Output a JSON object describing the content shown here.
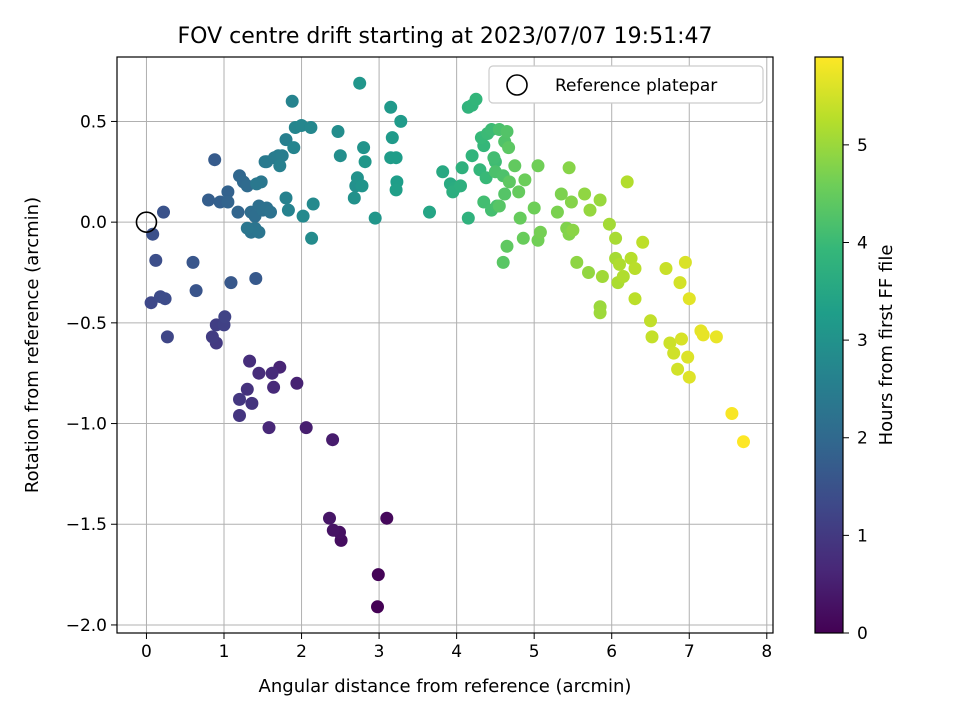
{
  "chart_data": {
    "type": "scatter",
    "title": "FOV centre drift starting at 2023/07/07 19:51:47",
    "xlabel": "Angular distance from reference (arcmin)",
    "ylabel": "Rotation from reference (arcmin)",
    "xlim": [
      -0.38,
      8.08
    ],
    "ylim": [
      -2.04,
      0.82
    ],
    "xticks": [
      "0",
      "1",
      "2",
      "3",
      "4",
      "5",
      "6",
      "7",
      "8"
    ],
    "yticks": [
      "0.5",
      "0.0",
      "−0.5",
      "−1.0",
      "−1.5",
      "−2.0"
    ],
    "grid": true,
    "legend": {
      "location": "top-right",
      "entries": [
        "Reference platepar"
      ]
    },
    "reference_point": {
      "x": 0,
      "y": 0
    },
    "colorbar": {
      "label": "Hours from first FF file",
      "colormap": "viridis",
      "range": [
        0,
        5.9
      ],
      "ticks": [
        "0",
        "1",
        "2",
        "3",
        "4",
        "5"
      ]
    },
    "colormap_stops": [
      "#440154",
      "#482878",
      "#3e4989",
      "#31688e",
      "#26828e",
      "#1f9e89",
      "#35b779",
      "#6ece58",
      "#b5de2b",
      "#fde725"
    ],
    "points": [
      [
        2.98,
        -1.91,
        0.0
      ],
      [
        2.99,
        -1.75,
        0.05
      ],
      [
        3.1,
        -1.47,
        0.12
      ],
      [
        2.51,
        -1.58,
        0.2
      ],
      [
        2.49,
        -1.54,
        0.25
      ],
      [
        2.41,
        -1.53,
        0.3
      ],
      [
        2.36,
        -1.47,
        0.33
      ],
      [
        2.4,
        -1.08,
        0.45
      ],
      [
        2.06,
        -1.02,
        0.5
      ],
      [
        1.94,
        -0.8,
        0.55
      ],
      [
        1.72,
        -0.72,
        0.6
      ],
      [
        1.58,
        -1.02,
        0.65
      ],
      [
        1.64,
        -0.82,
        0.7
      ],
      [
        1.62,
        -0.75,
        0.72
      ],
      [
        1.45,
        -0.75,
        0.75
      ],
      [
        1.33,
        -0.69,
        0.78
      ],
      [
        1.3,
        -0.83,
        0.85
      ],
      [
        1.36,
        -0.9,
        0.9
      ],
      [
        1.2,
        -0.96,
        0.92
      ],
      [
        1.2,
        -0.88,
        0.95
      ],
      [
        0.9,
        -0.6,
        1.0
      ],
      [
        0.85,
        -0.57,
        1.05
      ],
      [
        0.9,
        -0.51,
        1.1
      ],
      [
        1.0,
        -0.51,
        1.15
      ],
      [
        1.01,
        -0.47,
        1.2
      ],
      [
        0.27,
        -0.57,
        1.25
      ],
      [
        0.06,
        -0.4,
        1.3
      ],
      [
        0.18,
        -0.37,
        1.35
      ],
      [
        0.24,
        -0.38,
        1.38
      ],
      [
        0.12,
        -0.19,
        1.42
      ],
      [
        0.08,
        -0.06,
        1.45
      ],
      [
        0.22,
        0.05,
        1.5
      ],
      [
        0.64,
        -0.34,
        1.55
      ],
      [
        0.6,
        -0.2,
        1.58
      ],
      [
        1.09,
        -0.3,
        1.62
      ],
      [
        1.41,
        -0.28,
        1.65
      ],
      [
        0.88,
        0.31,
        1.7
      ],
      [
        0.8,
        0.11,
        1.75
      ],
      [
        0.95,
        0.1,
        1.8
      ],
      [
        1.05,
        0.15,
        1.85
      ],
      [
        1.05,
        0.1,
        1.88
      ],
      [
        1.18,
        0.05,
        1.9
      ],
      [
        1.2,
        0.23,
        1.95
      ],
      [
        1.25,
        0.2,
        2.0
      ],
      [
        1.3,
        0.18,
        2.05
      ],
      [
        1.35,
        0.05,
        2.1
      ],
      [
        1.4,
        0.03,
        2.12
      ],
      [
        1.45,
        0.08,
        2.15
      ],
      [
        1.5,
        0.06,
        2.18
      ],
      [
        1.55,
        0.07,
        2.2
      ],
      [
        1.6,
        0.05,
        2.22
      ],
      [
        1.35,
        -0.05,
        2.25
      ],
      [
        1.4,
        -0.03,
        2.28
      ],
      [
        1.45,
        -0.05,
        2.3
      ],
      [
        1.3,
        -0.03,
        2.32
      ],
      [
        1.48,
        0.2,
        2.35
      ],
      [
        1.42,
        0.19,
        2.38
      ],
      [
        1.53,
        0.3,
        2.4
      ],
      [
        1.55,
        0.3,
        2.42
      ],
      [
        1.65,
        0.32,
        2.45
      ],
      [
        1.7,
        0.33,
        2.48
      ],
      [
        1.75,
        0.33,
        2.5
      ],
      [
        1.8,
        0.41,
        2.55
      ],
      [
        1.72,
        0.28,
        2.58
      ],
      [
        1.8,
        0.12,
        2.6
      ],
      [
        1.83,
        0.06,
        2.62
      ],
      [
        1.88,
        0.6,
        2.65
      ],
      [
        1.9,
        0.37,
        2.68
      ],
      [
        1.92,
        0.47,
        2.7
      ],
      [
        2.0,
        0.48,
        2.72
      ],
      [
        2.12,
        0.47,
        2.75
      ],
      [
        2.02,
        0.03,
        2.78
      ],
      [
        2.15,
        0.09,
        2.8
      ],
      [
        2.13,
        -0.08,
        2.83
      ],
      [
        2.47,
        0.45,
        2.88
      ],
      [
        2.5,
        0.33,
        2.9
      ],
      [
        2.7,
        0.18,
        2.95
      ],
      [
        2.68,
        0.12,
        2.98
      ],
      [
        2.72,
        0.22,
        3.0
      ],
      [
        2.8,
        0.37,
        3.02
      ],
      [
        2.78,
        0.18,
        3.05
      ],
      [
        2.75,
        0.69,
        3.08
      ],
      [
        2.95,
        0.02,
        3.1
      ],
      [
        2.82,
        0.3,
        3.12
      ],
      [
        3.15,
        0.57,
        3.15
      ],
      [
        3.17,
        0.42,
        3.18
      ],
      [
        3.28,
        0.5,
        3.2
      ],
      [
        3.15,
        0.32,
        3.22
      ],
      [
        3.22,
        0.32,
        3.25
      ],
      [
        3.23,
        0.2,
        3.28
      ],
      [
        3.22,
        0.16,
        3.3
      ],
      [
        3.65,
        0.05,
        3.45
      ],
      [
        3.82,
        0.25,
        3.55
      ],
      [
        3.92,
        0.19,
        3.6
      ],
      [
        3.98,
        0.17,
        3.65
      ],
      [
        3.95,
        0.15,
        3.7
      ],
      [
        4.05,
        0.18,
        3.72
      ],
      [
        4.07,
        0.27,
        3.75
      ],
      [
        4.15,
        0.02,
        3.78
      ],
      [
        4.15,
        0.57,
        3.8
      ],
      [
        4.2,
        0.33,
        3.82
      ],
      [
        4.2,
        0.58,
        3.85
      ],
      [
        4.25,
        0.61,
        3.88
      ],
      [
        4.3,
        0.26,
        3.9
      ],
      [
        4.35,
        0.38,
        3.92
      ],
      [
        4.32,
        0.42,
        3.95
      ],
      [
        4.38,
        0.22,
        3.97
      ],
      [
        4.4,
        0.44,
        4.0
      ],
      [
        4.45,
        0.46,
        4.02
      ],
      [
        4.5,
        0.3,
        4.05
      ],
      [
        4.48,
        0.32,
        4.08
      ],
      [
        4.35,
        0.1,
        4.1
      ],
      [
        4.45,
        0.06,
        4.12
      ],
      [
        4.52,
        0.08,
        4.15
      ],
      [
        4.55,
        0.46,
        4.18
      ],
      [
        4.5,
        0.25,
        4.2
      ],
      [
        4.6,
        0.23,
        4.22
      ],
      [
        4.62,
        0.4,
        4.25
      ],
      [
        4.65,
        0.45,
        4.28
      ],
      [
        4.62,
        0.14,
        4.3
      ],
      [
        4.55,
        0.08,
        4.32
      ],
      [
        4.6,
        -0.2,
        4.35
      ],
      [
        4.67,
        0.37,
        4.38
      ],
      [
        4.68,
        0.2,
        4.4
      ],
      [
        4.65,
        -0.12,
        4.42
      ],
      [
        4.75,
        0.28,
        4.45
      ],
      [
        4.8,
        0.15,
        4.48
      ],
      [
        4.82,
        0.02,
        4.5
      ],
      [
        4.86,
        -0.08,
        4.52
      ],
      [
        4.88,
        0.21,
        4.55
      ],
      [
        5.0,
        0.07,
        4.58
      ],
      [
        5.05,
        0.28,
        4.6
      ],
      [
        5.05,
        -0.09,
        4.62
      ],
      [
        5.08,
        -0.05,
        4.65
      ],
      [
        5.3,
        0.05,
        4.7
      ],
      [
        5.35,
        0.14,
        4.72
      ],
      [
        5.42,
        -0.03,
        4.75
      ],
      [
        5.45,
        -0.06,
        4.78
      ],
      [
        5.48,
        0.1,
        4.8
      ],
      [
        5.45,
        0.27,
        4.82
      ],
      [
        5.5,
        -0.04,
        4.85
      ],
      [
        5.55,
        -0.2,
        4.88
      ],
      [
        5.65,
        0.14,
        4.9
      ],
      [
        5.7,
        -0.25,
        4.92
      ],
      [
        5.72,
        0.06,
        4.95
      ],
      [
        5.85,
        0.11,
        4.98
      ],
      [
        5.85,
        -0.42,
        5.0
      ],
      [
        5.85,
        -0.45,
        5.02
      ],
      [
        5.88,
        -0.27,
        5.05
      ],
      [
        5.97,
        -0.01,
        5.08
      ],
      [
        6.05,
        -0.18,
        5.1
      ],
      [
        6.05,
        -0.08,
        5.12
      ],
      [
        6.08,
        -0.3,
        5.15
      ],
      [
        6.1,
        -0.21,
        5.18
      ],
      [
        6.15,
        -0.27,
        5.2
      ],
      [
        6.2,
        0.2,
        5.22
      ],
      [
        6.25,
        -0.18,
        5.25
      ],
      [
        6.3,
        -0.23,
        5.28
      ],
      [
        6.3,
        -0.38,
        5.3
      ],
      [
        6.4,
        -0.1,
        5.32
      ],
      [
        6.5,
        -0.49,
        5.35
      ],
      [
        6.52,
        -0.57,
        5.38
      ],
      [
        6.7,
        -0.23,
        5.42
      ],
      [
        6.75,
        -0.6,
        5.45
      ],
      [
        6.8,
        -0.65,
        5.48
      ],
      [
        6.85,
        -0.73,
        5.5
      ],
      [
        6.88,
        -0.3,
        5.52
      ],
      [
        6.9,
        -0.58,
        5.55
      ],
      [
        6.95,
        -0.2,
        5.57
      ],
      [
        6.98,
        -0.67,
        5.6
      ],
      [
        7.0,
        -0.77,
        5.62
      ],
      [
        7.0,
        -0.38,
        5.65
      ],
      [
        7.15,
        -0.54,
        5.68
      ],
      [
        7.18,
        -0.56,
        5.7
      ],
      [
        7.35,
        -0.57,
        5.72
      ],
      [
        7.55,
        -0.95,
        5.85
      ],
      [
        7.7,
        -1.09,
        5.9
      ]
    ]
  }
}
